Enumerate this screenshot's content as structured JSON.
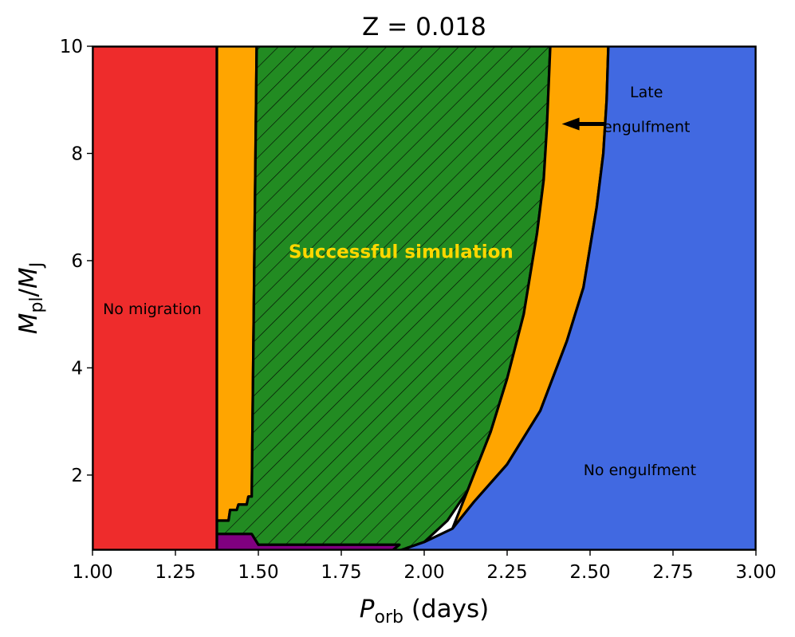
{
  "chart_data": {
    "type": "area",
    "title": "Z = 0.018",
    "xlabel": {
      "main": "P",
      "sub": "orb",
      "rest": " (days)"
    },
    "ylabel": {
      "main": "M",
      "sub1": "pl",
      "sep": "/",
      "main2": "M",
      "sub2": "J"
    },
    "xlim": [
      1.0,
      3.0
    ],
    "ylim": [
      0.6,
      10.0
    ],
    "x_ticks": [
      "1.00",
      "1.25",
      "1.50",
      "1.75",
      "2.00",
      "2.25",
      "2.50",
      "2.75",
      "3.00"
    ],
    "y_ticks": [
      "2",
      "4",
      "6",
      "8",
      "10"
    ],
    "colors": {
      "no_migration": "#EE2C2C",
      "late_engulfment": "#FFA500",
      "success": "#228B22",
      "no_engulfment": "#4169E1",
      "bottom_band": "#800080",
      "success_text": "#FFD700"
    },
    "regions": [
      {
        "name": "no-migration",
        "polygon": [
          [
            1.0,
            0.6
          ],
          [
            1.0,
            10.0
          ],
          [
            1.375,
            10.0
          ],
          [
            1.375,
            0.6
          ]
        ]
      },
      {
        "name": "orange-strip-left",
        "polygon": [
          [
            1.375,
            1.15
          ],
          [
            1.375,
            10.0
          ],
          [
            1.495,
            10.0
          ],
          [
            1.48,
            1.6
          ],
          [
            1.47,
            1.6
          ],
          [
            1.465,
            1.45
          ],
          [
            1.44,
            1.45
          ],
          [
            1.435,
            1.35
          ],
          [
            1.415,
            1.35
          ],
          [
            1.41,
            1.15
          ]
        ]
      },
      {
        "name": "success",
        "polygon": [
          [
            1.375,
            0.9
          ],
          [
            1.375,
            1.15
          ],
          [
            1.41,
            1.15
          ],
          [
            1.415,
            1.35
          ],
          [
            1.435,
            1.35
          ],
          [
            1.44,
            1.45
          ],
          [
            1.465,
            1.45
          ],
          [
            1.47,
            1.6
          ],
          [
            1.48,
            1.6
          ],
          [
            1.495,
            10.0
          ],
          [
            2.38,
            10.0
          ],
          [
            2.37,
            8.5
          ],
          [
            2.36,
            7.5
          ],
          [
            2.34,
            6.5
          ],
          [
            2.3,
            5.0
          ],
          [
            2.25,
            3.8
          ],
          [
            2.2,
            2.8
          ],
          [
            2.13,
            1.7
          ],
          [
            2.07,
            1.15
          ],
          [
            2.0,
            0.75
          ],
          [
            1.93,
            0.6
          ],
          [
            1.905,
            0.6
          ],
          [
            1.925,
            0.7
          ],
          [
            1.5,
            0.7
          ],
          [
            1.48,
            0.9
          ]
        ]
      },
      {
        "name": "late-engulfment",
        "polygon": [
          [
            2.38,
            10.0
          ],
          [
            2.555,
            10.0
          ],
          [
            2.55,
            9.0
          ],
          [
            2.54,
            8.0
          ],
          [
            2.52,
            7.0
          ],
          [
            2.48,
            5.5
          ],
          [
            2.43,
            4.5
          ],
          [
            2.35,
            3.2
          ],
          [
            2.25,
            2.2
          ],
          [
            2.15,
            1.5
          ],
          [
            2.085,
            1.0
          ],
          [
            2.13,
            1.7
          ],
          [
            2.2,
            2.8
          ],
          [
            2.25,
            3.8
          ],
          [
            2.3,
            5.0
          ],
          [
            2.34,
            6.5
          ],
          [
            2.36,
            7.5
          ],
          [
            2.37,
            8.5
          ]
        ]
      },
      {
        "name": "no-engulfment",
        "polygon": [
          [
            1.93,
            0.6
          ],
          [
            2.0,
            0.75
          ],
          [
            2.085,
            1.0
          ],
          [
            2.15,
            1.5
          ],
          [
            2.25,
            2.2
          ],
          [
            2.35,
            3.2
          ],
          [
            2.43,
            4.5
          ],
          [
            2.48,
            5.5
          ],
          [
            2.52,
            7.0
          ],
          [
            2.54,
            8.0
          ],
          [
            2.55,
            9.0
          ],
          [
            2.555,
            10.0
          ],
          [
            3.0,
            10.0
          ],
          [
            3.0,
            0.6
          ]
        ]
      },
      {
        "name": "purple-band",
        "polygon": [
          [
            1.375,
            0.6
          ],
          [
            1.375,
            0.9
          ],
          [
            1.48,
            0.9
          ],
          [
            1.5,
            0.7
          ],
          [
            1.925,
            0.7
          ],
          [
            1.905,
            0.6
          ]
        ]
      }
    ],
    "annotations": [
      {
        "name": "no-migration-label",
        "text": "No migration",
        "x": 1.18,
        "y": 5.0
      },
      {
        "name": "success-label",
        "text": "Successful simulation",
        "x": 1.93,
        "y": 6.05
      },
      {
        "name": "late-engulfment-label-1",
        "text": "Late",
        "x": 2.67,
        "y": 9.05
      },
      {
        "name": "late-engulfment-label-2",
        "text": "engulfment",
        "x": 2.67,
        "y": 8.4
      },
      {
        "name": "no-engulfment-label",
        "text": "No engulfment",
        "x": 2.65,
        "y": 2.0
      }
    ],
    "arrow": {
      "from": [
        2.545,
        8.55
      ],
      "to": [
        2.415,
        8.55
      ]
    }
  }
}
